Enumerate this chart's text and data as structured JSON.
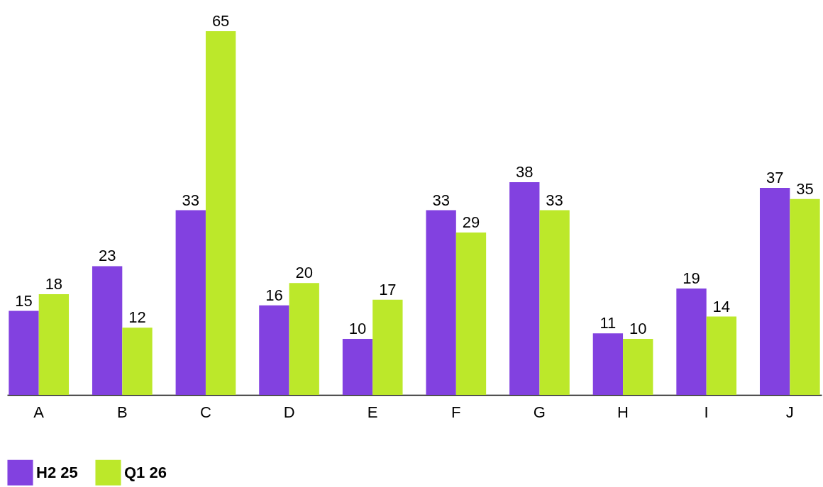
{
  "chart_data": {
    "type": "bar",
    "categories": [
      "A",
      "B",
      "C",
      "D",
      "E",
      "F",
      "G",
      "H",
      "I",
      "J"
    ],
    "series": [
      {
        "name": "H2 25",
        "color": "#8241e0",
        "values": [
          15,
          23,
          33,
          16,
          10,
          33,
          38,
          11,
          19,
          37
        ]
      },
      {
        "name": "Q1 26",
        "color": "#bce82a",
        "values": [
          18,
          12,
          65,
          20,
          17,
          29,
          33,
          10,
          14,
          35
        ]
      }
    ],
    "data_labels": true,
    "legend": "bottom",
    "tick_labels": "x"
  }
}
